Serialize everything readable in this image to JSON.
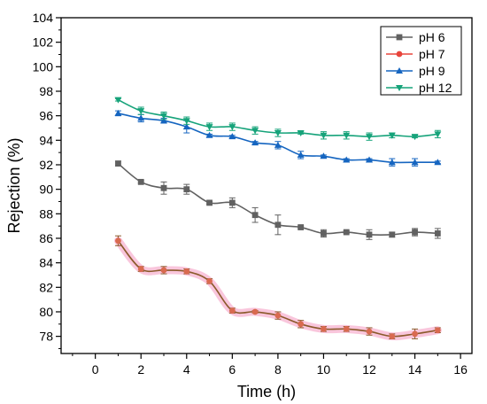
{
  "chart_data": {
    "type": "line",
    "title": "",
    "xlabel": "Time (h)",
    "ylabel": "Rejection (%)",
    "xlim": [
      -1.5,
      16.5
    ],
    "ylim": [
      76.6,
      104
    ],
    "xticks": [
      0,
      2,
      4,
      6,
      8,
      10,
      12,
      14,
      16
    ],
    "yticks": [
      78,
      80,
      82,
      84,
      86,
      88,
      90,
      92,
      94,
      96,
      98,
      100,
      102,
      104
    ],
    "xtick_labels": [
      "0",
      "2",
      "4",
      "6",
      "8",
      "10",
      "12",
      "14",
      "16"
    ],
    "ytick_labels": [
      "78",
      "80",
      "82",
      "84",
      "86",
      "88",
      "90",
      "92",
      "94",
      "96",
      "98",
      "100",
      "102",
      "104"
    ],
    "grid": false,
    "legend_position": "top-right",
    "x": [
      1,
      2,
      3,
      4,
      5,
      6,
      7,
      8,
      9,
      10,
      11,
      12,
      13,
      14,
      15
    ],
    "series": [
      {
        "name": "pH 6",
        "color": "#616161",
        "marker": "square",
        "values": [
          92.1,
          90.6,
          90.1,
          90.0,
          88.9,
          88.9,
          87.9,
          87.1,
          86.9,
          86.4,
          86.5,
          86.3,
          86.3,
          86.5,
          86.4
        ],
        "errors": [
          0.2,
          0.1,
          0.5,
          0.4,
          0.1,
          0.4,
          0.6,
          0.8,
          0.1,
          0.3,
          0.1,
          0.4,
          0.2,
          0.3,
          0.4
        ]
      },
      {
        "name": "pH 7",
        "color": "#e8453c",
        "line_color": "#8b5a2b",
        "marker": "circle",
        "values": [
          85.8,
          83.5,
          83.4,
          83.3,
          82.5,
          80.1,
          80.0,
          79.7,
          79.0,
          78.6,
          78.6,
          78.4,
          78.0,
          78.2,
          78.5
        ],
        "errors": [
          0.4,
          0.2,
          0.3,
          0.2,
          0.2,
          0.2,
          0.1,
          0.3,
          0.3,
          0.2,
          0.2,
          0.3,
          0.2,
          0.4,
          0.2
        ]
      },
      {
        "name": "pH 9",
        "color": "#1565c0",
        "marker": "triangle-up",
        "values": [
          96.2,
          95.8,
          95.6,
          95.1,
          94.4,
          94.3,
          93.8,
          93.6,
          92.8,
          92.7,
          92.4,
          92.4,
          92.2,
          92.2,
          92.2
        ],
        "errors": [
          0.2,
          0.3,
          0.2,
          0.5,
          0.1,
          0.1,
          0.1,
          0.3,
          0.3,
          0.1,
          0.1,
          0.1,
          0.3,
          0.3,
          0.1
        ]
      },
      {
        "name": "pH 12",
        "color": "#16a37a",
        "marker": "triangle-down",
        "values": [
          97.3,
          96.4,
          96.0,
          95.6,
          95.1,
          95.1,
          94.8,
          94.6,
          94.6,
          94.4,
          94.4,
          94.3,
          94.4,
          94.3,
          94.5
        ],
        "errors": [
          0.1,
          0.3,
          0.3,
          0.3,
          0.3,
          0.3,
          0.3,
          0.3,
          0.1,
          0.3,
          0.3,
          0.3,
          0.2,
          0.1,
          0.3
        ]
      }
    ]
  }
}
